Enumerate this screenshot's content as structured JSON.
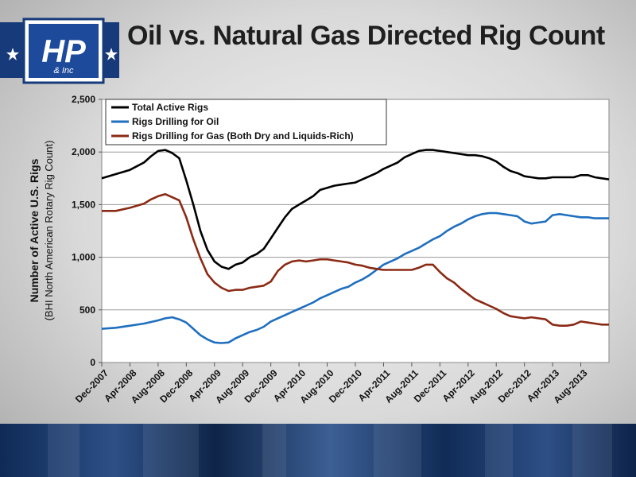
{
  "slide": {
    "title": "Oil vs. Natural Gas Directed Rig Count",
    "logo_text": "H&P Inc"
  },
  "chart_data": {
    "type": "line",
    "title": "Oil vs. Natural Gas Directed Rig Count",
    "ylabel": "Number of Active U.S. Rigs",
    "ylabel_sub": "(BHI North American Rotary Rig Count)",
    "xlabel": "",
    "ylim": [
      0,
      2500
    ],
    "yticks": [
      0,
      500,
      1000,
      1500,
      2000,
      2500
    ],
    "ytick_labels": [
      "0",
      "500",
      "1,000",
      "1,500",
      "2,000",
      "2,500"
    ],
    "x_range": [
      "2007-12",
      "2013-12"
    ],
    "xtick_labels": [
      "Dec-2007",
      "Apr-2008",
      "Aug-2008",
      "Dec-2008",
      "Apr-2009",
      "Aug-2009",
      "Dec-2009",
      "Apr-2010",
      "Aug-2010",
      "Dec-2010",
      "Apr-2011",
      "Aug-2011",
      "Dec-2011",
      "Apr-2012",
      "Aug-2012",
      "Dec-2012",
      "Apr-2013",
      "Aug-2013"
    ],
    "xtick_dates": [
      "2007-12",
      "2008-04",
      "2008-08",
      "2008-12",
      "2009-04",
      "2009-08",
      "2009-12",
      "2010-04",
      "2010-08",
      "2010-12",
      "2011-04",
      "2011-08",
      "2011-12",
      "2012-04",
      "2012-08",
      "2012-12",
      "2013-04",
      "2013-08"
    ],
    "grid": "horizontal",
    "legend_position": "top-left",
    "series": [
      {
        "name": "Total Active Rigs",
        "color": "#000000",
        "points": [
          [
            "2007-12",
            1750
          ],
          [
            "2008-02",
            1790
          ],
          [
            "2008-04",
            1830
          ],
          [
            "2008-06",
            1900
          ],
          [
            "2008-07",
            1960
          ],
          [
            "2008-08",
            2010
          ],
          [
            "2008-09",
            2020
          ],
          [
            "2008-10",
            1990
          ],
          [
            "2008-11",
            1940
          ],
          [
            "2008-12",
            1730
          ],
          [
            "2009-01",
            1500
          ],
          [
            "2009-02",
            1250
          ],
          [
            "2009-03",
            1070
          ],
          [
            "2009-04",
            960
          ],
          [
            "2009-05",
            910
          ],
          [
            "2009-06",
            890
          ],
          [
            "2009-07",
            930
          ],
          [
            "2009-08",
            950
          ],
          [
            "2009-09",
            1000
          ],
          [
            "2009-10",
            1030
          ],
          [
            "2009-11",
            1080
          ],
          [
            "2009-12",
            1180
          ],
          [
            "2010-01",
            1280
          ],
          [
            "2010-02",
            1380
          ],
          [
            "2010-03",
            1460
          ],
          [
            "2010-04",
            1500
          ],
          [
            "2010-05",
            1540
          ],
          [
            "2010-06",
            1580
          ],
          [
            "2010-07",
            1640
          ],
          [
            "2010-08",
            1660
          ],
          [
            "2010-09",
            1680
          ],
          [
            "2010-10",
            1690
          ],
          [
            "2010-11",
            1700
          ],
          [
            "2010-12",
            1710
          ],
          [
            "2011-01",
            1740
          ],
          [
            "2011-02",
            1770
          ],
          [
            "2011-03",
            1800
          ],
          [
            "2011-04",
            1840
          ],
          [
            "2011-05",
            1870
          ],
          [
            "2011-06",
            1900
          ],
          [
            "2011-07",
            1950
          ],
          [
            "2011-08",
            1980
          ],
          [
            "2011-09",
            2010
          ],
          [
            "2011-10",
            2020
          ],
          [
            "2011-11",
            2020
          ],
          [
            "2011-12",
            2010
          ],
          [
            "2012-01",
            2000
          ],
          [
            "2012-02",
            1990
          ],
          [
            "2012-03",
            1980
          ],
          [
            "2012-04",
            1970
          ],
          [
            "2012-05",
            1970
          ],
          [
            "2012-06",
            1960
          ],
          [
            "2012-07",
            1940
          ],
          [
            "2012-08",
            1910
          ],
          [
            "2012-09",
            1860
          ],
          [
            "2012-10",
            1820
          ],
          [
            "2012-11",
            1800
          ],
          [
            "2012-12",
            1770
          ],
          [
            "2013-01",
            1760
          ],
          [
            "2013-02",
            1750
          ],
          [
            "2013-03",
            1750
          ],
          [
            "2013-04",
            1760
          ],
          [
            "2013-05",
            1760
          ],
          [
            "2013-06",
            1760
          ],
          [
            "2013-07",
            1760
          ],
          [
            "2013-08",
            1780
          ],
          [
            "2013-09",
            1780
          ],
          [
            "2013-10",
            1760
          ],
          [
            "2013-11",
            1750
          ],
          [
            "2013-12",
            1740
          ]
        ]
      },
      {
        "name": "Rigs Drilling for Oil",
        "color": "#1f6fbf",
        "points": [
          [
            "2007-12",
            320
          ],
          [
            "2008-02",
            330
          ],
          [
            "2008-04",
            350
          ],
          [
            "2008-06",
            370
          ],
          [
            "2008-08",
            400
          ],
          [
            "2008-09",
            420
          ],
          [
            "2008-10",
            430
          ],
          [
            "2008-11",
            410
          ],
          [
            "2008-12",
            380
          ],
          [
            "2009-01",
            320
          ],
          [
            "2009-02",
            260
          ],
          [
            "2009-03",
            220
          ],
          [
            "2009-04",
            190
          ],
          [
            "2009-05",
            185
          ],
          [
            "2009-06",
            190
          ],
          [
            "2009-07",
            230
          ],
          [
            "2009-08",
            260
          ],
          [
            "2009-09",
            290
          ],
          [
            "2009-10",
            310
          ],
          [
            "2009-11",
            340
          ],
          [
            "2009-12",
            390
          ],
          [
            "2010-01",
            420
          ],
          [
            "2010-02",
            450
          ],
          [
            "2010-03",
            480
          ],
          [
            "2010-04",
            510
          ],
          [
            "2010-05",
            540
          ],
          [
            "2010-06",
            570
          ],
          [
            "2010-07",
            610
          ],
          [
            "2010-08",
            640
          ],
          [
            "2010-09",
            670
          ],
          [
            "2010-10",
            700
          ],
          [
            "2010-11",
            720
          ],
          [
            "2010-12",
            760
          ],
          [
            "2011-01",
            790
          ],
          [
            "2011-02",
            830
          ],
          [
            "2011-03",
            880
          ],
          [
            "2011-04",
            930
          ],
          [
            "2011-05",
            960
          ],
          [
            "2011-06",
            990
          ],
          [
            "2011-07",
            1030
          ],
          [
            "2011-08",
            1060
          ],
          [
            "2011-09",
            1090
          ],
          [
            "2011-10",
            1130
          ],
          [
            "2011-11",
            1170
          ],
          [
            "2011-12",
            1200
          ],
          [
            "2012-01",
            1250
          ],
          [
            "2012-02",
            1290
          ],
          [
            "2012-03",
            1320
          ],
          [
            "2012-04",
            1360
          ],
          [
            "2012-05",
            1390
          ],
          [
            "2012-06",
            1410
          ],
          [
            "2012-07",
            1420
          ],
          [
            "2012-08",
            1420
          ],
          [
            "2012-09",
            1410
          ],
          [
            "2012-10",
            1400
          ],
          [
            "2012-11",
            1390
          ],
          [
            "2012-12",
            1340
          ],
          [
            "2013-01",
            1320
          ],
          [
            "2013-02",
            1330
          ],
          [
            "2013-03",
            1340
          ],
          [
            "2013-04",
            1400
          ],
          [
            "2013-05",
            1410
          ],
          [
            "2013-06",
            1400
          ],
          [
            "2013-07",
            1390
          ],
          [
            "2013-08",
            1380
          ],
          [
            "2013-09",
            1380
          ],
          [
            "2013-10",
            1370
          ],
          [
            "2013-11",
            1370
          ],
          [
            "2013-12",
            1370
          ]
        ]
      },
      {
        "name": "Rigs Drilling for Gas (Both Dry and Liquids-Rich)",
        "color": "#8b2a14",
        "points": [
          [
            "2007-12",
            1440
          ],
          [
            "2008-02",
            1440
          ],
          [
            "2008-04",
            1470
          ],
          [
            "2008-06",
            1510
          ],
          [
            "2008-07",
            1550
          ],
          [
            "2008-08",
            1580
          ],
          [
            "2008-09",
            1600
          ],
          [
            "2008-10",
            1570
          ],
          [
            "2008-11",
            1540
          ],
          [
            "2008-12",
            1380
          ],
          [
            "2009-01",
            1170
          ],
          [
            "2009-02",
            990
          ],
          [
            "2009-03",
            840
          ],
          [
            "2009-04",
            760
          ],
          [
            "2009-05",
            710
          ],
          [
            "2009-06",
            680
          ],
          [
            "2009-07",
            690
          ],
          [
            "2009-08",
            690
          ],
          [
            "2009-09",
            710
          ],
          [
            "2009-10",
            720
          ],
          [
            "2009-11",
            730
          ],
          [
            "2009-12",
            770
          ],
          [
            "2010-01",
            870
          ],
          [
            "2010-02",
            930
          ],
          [
            "2010-03",
            960
          ],
          [
            "2010-04",
            970
          ],
          [
            "2010-05",
            960
          ],
          [
            "2010-06",
            970
          ],
          [
            "2010-07",
            980
          ],
          [
            "2010-08",
            980
          ],
          [
            "2010-09",
            970
          ],
          [
            "2010-10",
            960
          ],
          [
            "2010-11",
            950
          ],
          [
            "2010-12",
            930
          ],
          [
            "2011-01",
            920
          ],
          [
            "2011-02",
            900
          ],
          [
            "2011-03",
            890
          ],
          [
            "2011-04",
            880
          ],
          [
            "2011-05",
            880
          ],
          [
            "2011-06",
            880
          ],
          [
            "2011-07",
            880
          ],
          [
            "2011-08",
            880
          ],
          [
            "2011-09",
            900
          ],
          [
            "2011-10",
            930
          ],
          [
            "2011-11",
            930
          ],
          [
            "2011-12",
            860
          ],
          [
            "2012-01",
            800
          ],
          [
            "2012-02",
            760
          ],
          [
            "2012-03",
            700
          ],
          [
            "2012-04",
            650
          ],
          [
            "2012-05",
            600
          ],
          [
            "2012-06",
            570
          ],
          [
            "2012-07",
            540
          ],
          [
            "2012-08",
            510
          ],
          [
            "2012-09",
            470
          ],
          [
            "2012-10",
            440
          ],
          [
            "2012-11",
            430
          ],
          [
            "2012-12",
            420
          ],
          [
            "2013-01",
            430
          ],
          [
            "2013-02",
            420
          ],
          [
            "2013-03",
            410
          ],
          [
            "2013-04",
            360
          ],
          [
            "2013-05",
            350
          ],
          [
            "2013-06",
            350
          ],
          [
            "2013-07",
            360
          ],
          [
            "2013-08",
            390
          ],
          [
            "2013-09",
            380
          ],
          [
            "2013-10",
            370
          ],
          [
            "2013-11",
            360
          ],
          [
            "2013-12",
            360
          ]
        ]
      }
    ]
  }
}
